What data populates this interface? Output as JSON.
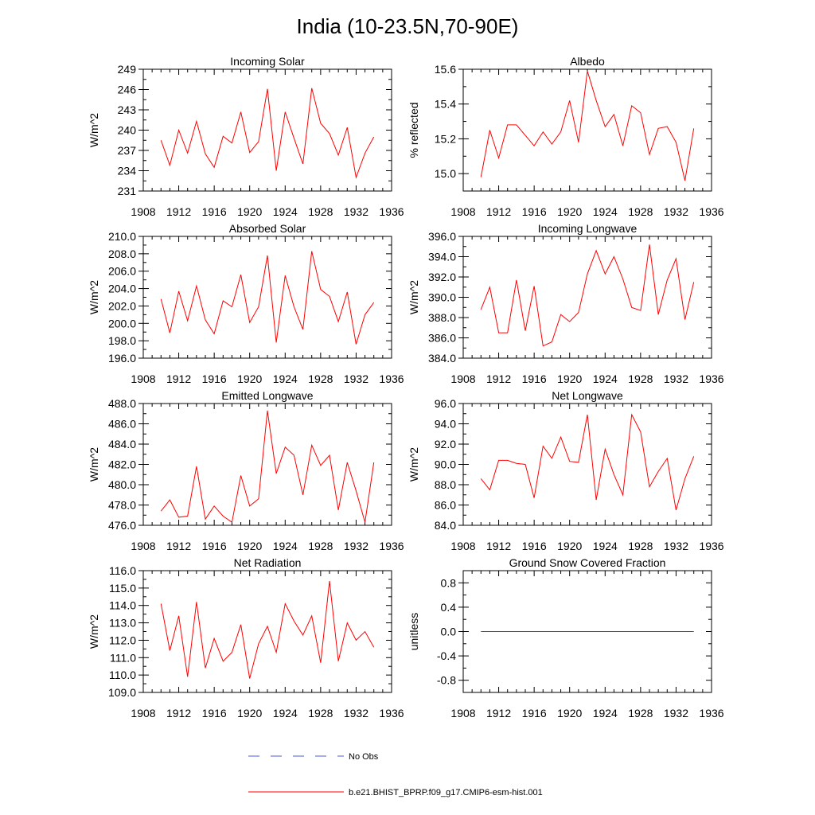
{
  "title": "India (10-23.5N,70-90E)",
  "colors": {
    "model_line": "#ff0000",
    "obs_line": "#4f5fd0"
  },
  "legend": {
    "obs_label": "No Obs",
    "model_label": "b.e21.BHIST_BPRP.f09_g17.CMIP6-esm-hist.001"
  },
  "chart_data": [
    {
      "type": "line",
      "title": "Incoming Solar",
      "ylabel": "W/m^2",
      "xlim": [
        1908,
        1936
      ],
      "ylim": [
        231,
        249
      ],
      "xticks": [
        1908,
        1912,
        1916,
        1920,
        1924,
        1928,
        1932,
        1936
      ],
      "yticks": [
        231,
        234,
        237,
        240,
        243,
        246,
        249
      ],
      "ytick_labels": [
        "231",
        "234",
        "237",
        "240",
        "243",
        "246",
        "249"
      ],
      "x": [
        1910,
        1911,
        1912,
        1913,
        1914,
        1915,
        1916,
        1917,
        1918,
        1919,
        1920,
        1921,
        1922,
        1923,
        1924,
        1925,
        1926,
        1927,
        1928,
        1929,
        1930,
        1931,
        1932,
        1933,
        1934
      ],
      "series": [
        {
          "name": "b.e21.BHIST_BPRP.f09_g17.CMIP6-esm-hist.001",
          "values": [
            238.5,
            234.8,
            240.0,
            236.6,
            241.3,
            236.5,
            234.5,
            239.1,
            238.1,
            242.7,
            236.7,
            238.3,
            246.1,
            234.0,
            242.7,
            238.8,
            235.0,
            246.2,
            241.0,
            239.5,
            236.3,
            240.4,
            233.0,
            236.6,
            239.0
          ]
        }
      ]
    },
    {
      "type": "line",
      "title": "Albedo",
      "ylabel": "% reflected",
      "xlim": [
        1908,
        1936
      ],
      "ylim": [
        14.9,
        15.6
      ],
      "xticks": [
        1908,
        1912,
        1916,
        1920,
        1924,
        1928,
        1932,
        1936
      ],
      "yticks": [
        15.0,
        15.2,
        15.4,
        15.6
      ],
      "ytick_labels": [
        "15.0",
        "15.2",
        "15.4",
        "15.6"
      ],
      "x": [
        1910,
        1911,
        1912,
        1913,
        1914,
        1915,
        1916,
        1917,
        1918,
        1919,
        1920,
        1921,
        1922,
        1923,
        1924,
        1925,
        1926,
        1927,
        1928,
        1929,
        1930,
        1931,
        1932,
        1933,
        1934
      ],
      "series": [
        {
          "name": "b.e21.BHIST_BPRP.f09_g17.CMIP6-esm-hist.001",
          "values": [
            14.98,
            15.25,
            15.09,
            15.28,
            15.28,
            15.22,
            15.16,
            15.24,
            15.17,
            15.24,
            15.42,
            15.18,
            15.59,
            15.42,
            15.27,
            15.34,
            15.16,
            15.39,
            15.35,
            15.11,
            15.26,
            15.27,
            15.18,
            14.96,
            15.26
          ]
        }
      ]
    },
    {
      "type": "line",
      "title": "Absorbed Solar",
      "ylabel": "W/m^2",
      "xlim": [
        1908,
        1936
      ],
      "ylim": [
        196,
        210
      ],
      "xticks": [
        1908,
        1912,
        1916,
        1920,
        1924,
        1928,
        1932,
        1936
      ],
      "yticks": [
        196,
        198,
        200,
        202,
        204,
        206,
        208,
        210
      ],
      "ytick_labels": [
        "196.0",
        "198.0",
        "200.0",
        "202.0",
        "204.0",
        "206.0",
        "208.0",
        "210.0"
      ],
      "x": [
        1910,
        1911,
        1912,
        1913,
        1914,
        1915,
        1916,
        1917,
        1918,
        1919,
        1920,
        1921,
        1922,
        1923,
        1924,
        1925,
        1926,
        1927,
        1928,
        1929,
        1930,
        1931,
        1932,
        1933,
        1934
      ],
      "series": [
        {
          "name": "b.e21.BHIST_BPRP.f09_g17.CMIP6-esm-hist.001",
          "values": [
            202.8,
            198.9,
            203.7,
            200.3,
            204.3,
            200.4,
            198.8,
            202.6,
            201.9,
            205.6,
            200.1,
            201.9,
            207.8,
            197.8,
            205.5,
            201.9,
            199.3,
            208.3,
            203.9,
            203.1,
            200.2,
            203.6,
            197.6,
            201.0,
            202.4
          ]
        }
      ]
    },
    {
      "type": "line",
      "title": "Incoming Longwave",
      "ylabel": "W/m^2",
      "xlim": [
        1908,
        1936
      ],
      "ylim": [
        384,
        396
      ],
      "xticks": [
        1908,
        1912,
        1916,
        1920,
        1924,
        1928,
        1932,
        1936
      ],
      "yticks": [
        384,
        386,
        388,
        390,
        392,
        394,
        396
      ],
      "ytick_labels": [
        "384.0",
        "386.0",
        "388.0",
        "390.0",
        "392.0",
        "394.0",
        "396.0"
      ],
      "x": [
        1910,
        1911,
        1912,
        1913,
        1914,
        1915,
        1916,
        1917,
        1918,
        1919,
        1920,
        1921,
        1922,
        1923,
        1924,
        1925,
        1926,
        1927,
        1928,
        1929,
        1930,
        1931,
        1932,
        1933,
        1934
      ],
      "series": [
        {
          "name": "b.e21.BHIST_BPRP.f09_g17.CMIP6-esm-hist.001",
          "values": [
            388.8,
            391.0,
            386.5,
            386.5,
            391.7,
            386.7,
            391.1,
            385.2,
            385.6,
            388.3,
            387.6,
            388.5,
            392.3,
            394.6,
            392.3,
            394.0,
            391.8,
            389.0,
            388.7,
            395.2,
            388.3,
            391.7,
            393.8,
            387.8,
            391.5
          ]
        }
      ]
    },
    {
      "type": "line",
      "title": "Emitted Longwave",
      "ylabel": "W/m^2",
      "xlim": [
        1908,
        1936
      ],
      "ylim": [
        476,
        488
      ],
      "xticks": [
        1908,
        1912,
        1916,
        1920,
        1924,
        1928,
        1932,
        1936
      ],
      "yticks": [
        476,
        478,
        480,
        482,
        484,
        486,
        488
      ],
      "ytick_labels": [
        "476.0",
        "478.0",
        "480.0",
        "482.0",
        "484.0",
        "486.0",
        "488.0"
      ],
      "x": [
        1910,
        1911,
        1912,
        1913,
        1914,
        1915,
        1916,
        1917,
        1918,
        1919,
        1920,
        1921,
        1922,
        1923,
        1924,
        1925,
        1926,
        1927,
        1928,
        1929,
        1930,
        1931,
        1932,
        1933,
        1934
      ],
      "series": [
        {
          "name": "b.e21.BHIST_BPRP.f09_g17.CMIP6-esm-hist.001",
          "values": [
            477.4,
            478.5,
            476.8,
            476.9,
            481.8,
            476.6,
            477.9,
            476.9,
            476.3,
            480.9,
            477.9,
            478.6,
            487.3,
            481.1,
            483.7,
            482.9,
            479.0,
            483.9,
            481.9,
            482.9,
            477.5,
            482.2,
            479.4,
            476.3,
            482.2
          ]
        }
      ]
    },
    {
      "type": "line",
      "title": "Net Longwave",
      "ylabel": "W/m^2",
      "xlim": [
        1908,
        1936
      ],
      "ylim": [
        84,
        96
      ],
      "xticks": [
        1908,
        1912,
        1916,
        1920,
        1924,
        1928,
        1932,
        1936
      ],
      "yticks": [
        84,
        86,
        88,
        90,
        92,
        94,
        96
      ],
      "ytick_labels": [
        "84.0",
        "86.0",
        "88.0",
        "90.0",
        "92.0",
        "94.0",
        "96.0"
      ],
      "x": [
        1910,
        1911,
        1912,
        1913,
        1914,
        1915,
        1916,
        1917,
        1918,
        1919,
        1920,
        1921,
        1922,
        1923,
        1924,
        1925,
        1926,
        1927,
        1928,
        1929,
        1930,
        1931,
        1932,
        1933,
        1934
      ],
      "series": [
        {
          "name": "b.e21.BHIST_BPRP.f09_g17.CMIP6-esm-hist.001",
          "values": [
            88.6,
            87.5,
            90.4,
            90.4,
            90.1,
            90.0,
            86.7,
            91.8,
            90.6,
            92.7,
            90.3,
            90.2,
            94.9,
            86.5,
            91.5,
            89.0,
            87.0,
            94.9,
            93.2,
            87.8,
            89.3,
            90.6,
            85.5,
            88.6,
            90.8
          ]
        }
      ]
    },
    {
      "type": "line",
      "title": "Net Radiation",
      "ylabel": "W/m^2",
      "xlim": [
        1908,
        1936
      ],
      "ylim": [
        109,
        116
      ],
      "xticks": [
        1908,
        1912,
        1916,
        1920,
        1924,
        1928,
        1932,
        1936
      ],
      "yticks": [
        109,
        110,
        111,
        112,
        113,
        114,
        115,
        116
      ],
      "ytick_labels": [
        "109.0",
        "110.0",
        "111.0",
        "112.0",
        "113.0",
        "114.0",
        "115.0",
        "116.0"
      ],
      "x": [
        1910,
        1911,
        1912,
        1913,
        1914,
        1915,
        1916,
        1917,
        1918,
        1919,
        1920,
        1921,
        1922,
        1923,
        1924,
        1925,
        1926,
        1927,
        1928,
        1929,
        1930,
        1931,
        1932,
        1933,
        1934
      ],
      "series": [
        {
          "name": "b.e21.BHIST_BPRP.f09_g17.CMIP6-esm-hist.001",
          "values": [
            114.1,
            111.4,
            113.4,
            109.9,
            114.2,
            110.4,
            112.1,
            110.8,
            111.3,
            112.9,
            109.8,
            111.8,
            112.8,
            111.3,
            114.1,
            113.1,
            112.3,
            113.4,
            110.7,
            115.4,
            110.8,
            113.0,
            112.0,
            112.5,
            111.6
          ]
        }
      ]
    },
    {
      "type": "line",
      "title": "Ground Snow Covered Fraction",
      "ylabel": "unitless",
      "xlim": [
        1908,
        1936
      ],
      "ylim": [
        -1.0,
        1.0
      ],
      "xticks": [
        1908,
        1912,
        1916,
        1920,
        1924,
        1928,
        1932,
        1936
      ],
      "yticks": [
        -0.8,
        -0.4,
        0.0,
        0.4,
        0.8
      ],
      "ytick_labels": [
        "-0.8",
        "-0.4",
        "0.0",
        "0.4",
        "0.8"
      ],
      "x": [
        1910,
        1911,
        1912,
        1913,
        1914,
        1915,
        1916,
        1917,
        1918,
        1919,
        1920,
        1921,
        1922,
        1923,
        1924,
        1925,
        1926,
        1927,
        1928,
        1929,
        1930,
        1931,
        1932,
        1933,
        1934
      ],
      "series": [
        {
          "name": "b.e21.BHIST_BPRP.f09_g17.CMIP6-esm-hist.001",
          "values": [
            0,
            0,
            0,
            0,
            0,
            0,
            0,
            0,
            0,
            0,
            0,
            0,
            0,
            0,
            0,
            0,
            0,
            0,
            0,
            0,
            0,
            0,
            0,
            0,
            0
          ]
        }
      ]
    }
  ]
}
